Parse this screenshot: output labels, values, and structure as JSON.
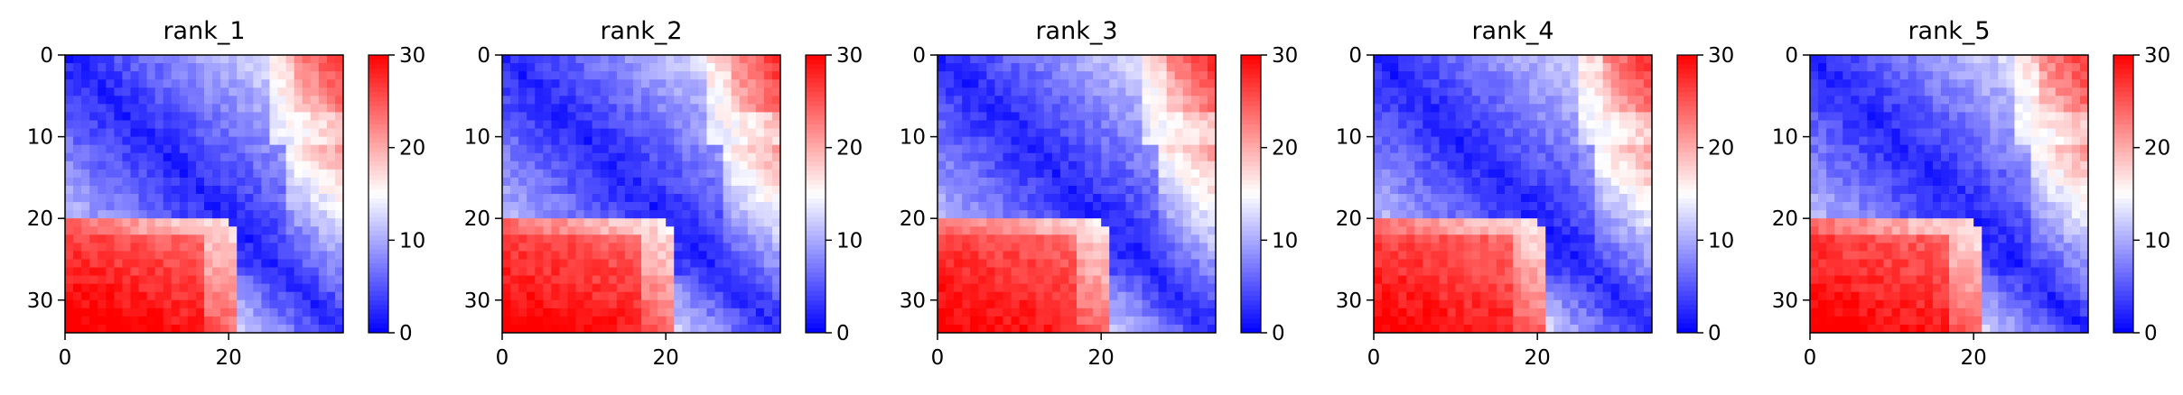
{
  "chart_data": {
    "type": "heatmap",
    "panels": [
      {
        "title": "rank_1",
        "red_gap": 1.25,
        "ur_red": 0.8
      },
      {
        "title": "rank_2",
        "red_gap": 1.15,
        "ur_red": 1.0
      },
      {
        "title": "rank_3",
        "red_gap": 1.05,
        "ur_red": 0.95
      },
      {
        "title": "rank_4",
        "red_gap": 1.0,
        "ur_red": 0.9
      },
      {
        "title": "rank_5",
        "red_gap": 1.1,
        "ur_red": 0.85
      }
    ],
    "matrix_size": 34,
    "x_ticks": [
      "0",
      "20"
    ],
    "x_tick_values": [
      0,
      20
    ],
    "y_ticks": [
      "0",
      "10",
      "20",
      "30"
    ],
    "y_tick_values": [
      0,
      10,
      20,
      30
    ],
    "colorbar": {
      "min": 0,
      "max": 30,
      "ticks": [
        "0",
        "10",
        "20",
        "30"
      ],
      "tick_values": [
        0,
        10,
        20,
        30
      ],
      "colormap": "bwr"
    },
    "colors": {
      "low": "#0000ff",
      "mid": "#ffffff",
      "high": "#ff0000"
    }
  }
}
